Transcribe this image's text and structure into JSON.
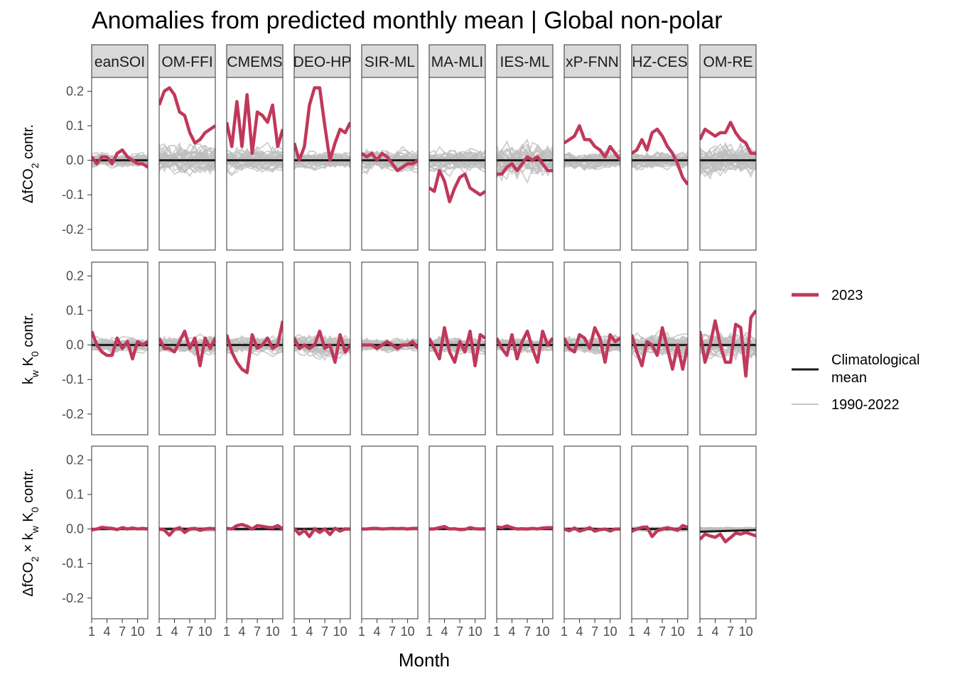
{
  "chart_data": {
    "type": "line",
    "title": "Anomalies from predicted monthly mean | Global non-polar",
    "xlabel": "Month",
    "x_ticks": [
      1,
      4,
      7,
      10
    ],
    "x_tick_labels": [
      "1",
      "4",
      "7",
      "10"
    ],
    "ylim": [
      -0.26,
      0.24
    ],
    "y_ticks": [
      -0.2,
      -0.1,
      0.0,
      0.1,
      0.2
    ],
    "y_tick_labels": [
      "-0.2",
      "-0.1",
      "0.0",
      "0.1",
      "0.2"
    ],
    "panels": [
      "eanSOI",
      "OM-FFI",
      "CMEMS",
      "DEO-HP",
      "SIR-ML",
      "MA-MLI",
      "IES-ML",
      "xP-FNN",
      "HZ-CES",
      "OM-RE"
    ],
    "rows": [
      {
        "ylabel": "ΔfCO2 contr.",
        "ylabel_parts": [
          [
            "Δ",
            ""
          ],
          [
            "fCO",
            ""
          ],
          [
            "2",
            "sub"
          ],
          [
            " contr.",
            ""
          ]
        ]
      },
      {
        "ylabel": "kw K0 contr.",
        "ylabel_parts": [
          [
            "k",
            ""
          ],
          [
            "w",
            "sub"
          ],
          [
            " K",
            ""
          ],
          [
            "0",
            "sub"
          ],
          [
            " contr.",
            ""
          ]
        ]
      },
      {
        "ylabel": "ΔfCO2 × kw K0 contr.",
        "ylabel_parts": [
          [
            "Δ",
            ""
          ],
          [
            "fCO",
            ""
          ],
          [
            "2",
            "sub"
          ],
          [
            " × k",
            ""
          ],
          [
            "w",
            "sub"
          ],
          [
            " K",
            ""
          ],
          [
            "0",
            "sub"
          ],
          [
            " contr.",
            ""
          ]
        ]
      }
    ],
    "legend": {
      "position": "right",
      "items": [
        {
          "label": "2023",
          "color": "#c0385a",
          "kind": "thick"
        },
        {
          "label": "Climatological mean",
          "label_lines": [
            "Climatological",
            "mean"
          ],
          "color": "#1a1a1a",
          "kind": "medium"
        },
        {
          "label": "1990-2022",
          "color": "#c8c8c8",
          "kind": "thin"
        }
      ]
    },
    "history_years": "1990-2022",
    "history_spread": [
      [
        0.03,
        0.07,
        0.06,
        0.04,
        0.05,
        0.05,
        0.08,
        0.04,
        0.04,
        0.07
      ],
      [
        0.03,
        0.04,
        0.04,
        0.05,
        0.03,
        0.04,
        0.03,
        0.04,
        0.05,
        0.06
      ],
      [
        0.005,
        0.008,
        0.007,
        0.008,
        0.004,
        0.005,
        0.004,
        0.006,
        0.01,
        0.008
      ]
    ],
    "climatological_mean": [
      [
        [
          1,
          0
        ],
        [
          12,
          0
        ]
      ],
      [
        [
          1,
          0
        ],
        [
          12,
          0
        ]
      ],
      [
        [
          1,
          0
        ],
        [
          12,
          0
        ]
      ],
      [
        [
          1,
          0
        ],
        [
          12,
          0
        ]
      ],
      [
        [
          1,
          0
        ],
        [
          12,
          0
        ]
      ],
      [
        [
          1,
          0
        ],
        [
          12,
          0
        ]
      ],
      [
        [
          1,
          0
        ],
        [
          12,
          0
        ]
      ],
      [
        [
          1,
          0
        ],
        [
          12,
          0
        ]
      ],
      [
        [
          1,
          0
        ],
        [
          12,
          0
        ]
      ],
      [
        [
          1,
          0
        ],
        [
          12,
          0
        ]
      ],
      [
        [
          1,
          0
        ],
        [
          12,
          0
        ]
      ],
      [
        [
          1,
          0
        ],
        [
          12,
          0
        ]
      ],
      [
        [
          1,
          0
        ],
        [
          12,
          0
        ]
      ],
      [
        [
          1,
          0
        ],
        [
          12,
          0
        ]
      ],
      [
        [
          1,
          0
        ],
        [
          12,
          0
        ]
      ],
      [
        [
          1,
          0
        ],
        [
          12,
          0
        ]
      ],
      [
        [
          1,
          0
        ],
        [
          12,
          0
        ]
      ],
      [
        [
          1,
          0
        ],
        [
          12,
          0
        ]
      ],
      [
        [
          1,
          0
        ],
        [
          12,
          0
        ]
      ],
      [
        [
          1,
          0
        ],
        [
          12,
          0
        ]
      ],
      [
        [
          1,
          0
        ],
        [
          12,
          0
        ]
      ],
      [
        [
          1,
          0
        ],
        [
          12,
          0
        ]
      ],
      [
        [
          1,
          0
        ],
        [
          12,
          0
        ]
      ],
      [
        [
          1,
          0
        ],
        [
          12,
          0
        ]
      ],
      [
        [
          1,
          0
        ],
        [
          12,
          0
        ]
      ],
      [
        [
          1,
          0
        ],
        [
          12,
          0
        ]
      ],
      [
        [
          1,
          0
        ],
        [
          12,
          0
        ]
      ],
      [
        [
          1,
          0
        ],
        [
          12,
          0
        ]
      ],
      [
        [
          1,
          0
        ],
        [
          12,
          0
        ]
      ],
      [
        [
          1,
          -0.008
        ],
        [
          12,
          -0.003
        ]
      ]
    ],
    "series_2023": [
      [
        [
          0.01,
          -0.01,
          0.01,
          0.01,
          -0.01,
          0.02,
          0.03,
          0.01,
          0.0,
          -0.01,
          -0.01,
          -0.02
        ],
        [
          0.16,
          0.2,
          0.21,
          0.19,
          0.14,
          0.13,
          0.08,
          0.05,
          0.06,
          0.08,
          0.09,
          0.1
        ],
        [
          0.11,
          0.04,
          0.17,
          0.04,
          0.19,
          0.02,
          0.14,
          0.13,
          0.11,
          0.16,
          0.04,
          0.09
        ],
        [
          0.05,
          0.0,
          0.04,
          0.16,
          0.21,
          0.21,
          0.1,
          0.0,
          0.05,
          0.09,
          0.08,
          0.11
        ],
        [
          0.02,
          0.01,
          0.02,
          0.0,
          0.02,
          0.01,
          -0.01,
          -0.03,
          -0.02,
          -0.01,
          -0.01,
          0.0
        ],
        [
          -0.08,
          -0.09,
          -0.03,
          -0.06,
          -0.12,
          -0.08,
          -0.05,
          -0.04,
          -0.08,
          -0.09,
          -0.1,
          -0.09
        ],
        [
          -0.04,
          -0.04,
          -0.02,
          -0.01,
          -0.03,
          -0.01,
          0.01,
          0.0,
          0.01,
          -0.01,
          -0.03,
          -0.03
        ],
        [
          0.05,
          0.06,
          0.07,
          0.1,
          0.06,
          0.06,
          0.04,
          0.03,
          0.01,
          0.04,
          0.02,
          0.0
        ],
        [
          0.02,
          0.03,
          0.06,
          0.03,
          0.08,
          0.09,
          0.07,
          0.04,
          0.02,
          -0.01,
          -0.05,
          -0.07
        ],
        [
          0.06,
          0.09,
          0.08,
          0.07,
          0.08,
          0.08,
          0.11,
          0.08,
          0.06,
          0.05,
          0.02,
          0.02
        ]
      ],
      [
        [
          0.04,
          0.0,
          -0.02,
          -0.03,
          -0.03,
          0.02,
          -0.01,
          0.01,
          -0.04,
          0.01,
          0.0,
          0.01
        ],
        [
          0.02,
          -0.01,
          -0.01,
          -0.02,
          0.01,
          0.04,
          -0.01,
          0.02,
          -0.06,
          0.02,
          -0.01,
          0.02
        ],
        [
          0.03,
          -0.02,
          -0.05,
          -0.07,
          -0.08,
          0.03,
          -0.01,
          0.0,
          0.02,
          -0.01,
          0.0,
          0.07
        ],
        [
          0.02,
          -0.01,
          0.0,
          -0.01,
          0.0,
          0.04,
          -0.01,
          0.0,
          -0.05,
          0.03,
          -0.02,
          0.0
        ],
        [
          0.0,
          0.0,
          0.0,
          -0.01,
          0.0,
          0.01,
          0.0,
          -0.01,
          0.0,
          0.0,
          0.01,
          -0.01
        ],
        [
          0.02,
          -0.01,
          -0.04,
          0.05,
          -0.02,
          -0.05,
          0.01,
          -0.02,
          0.04,
          -0.06,
          0.03,
          0.02
        ],
        [
          0.02,
          -0.01,
          -0.03,
          0.03,
          -0.04,
          0.01,
          0.04,
          -0.01,
          -0.05,
          0.04,
          0.0,
          0.02
        ],
        [
          0.02,
          -0.01,
          -0.02,
          0.03,
          0.02,
          -0.01,
          0.05,
          0.02,
          -0.05,
          0.03,
          0.01,
          0.02
        ],
        [
          0.03,
          -0.02,
          -0.06,
          0.01,
          0.0,
          -0.03,
          0.05,
          -0.01,
          -0.07,
          0.0,
          -0.07,
          0.0
        ],
        [
          0.04,
          -0.05,
          0.0,
          0.07,
          0.0,
          -0.05,
          -0.05,
          0.06,
          0.05,
          -0.09,
          0.08,
          0.1
        ]
      ],
      [
        [
          -0.003,
          0.0,
          0.005,
          0.003,
          0.002,
          -0.002,
          0.004,
          0.0,
          0.003,
          0.0,
          0.002,
          0.0
        ],
        [
          0.0,
          -0.003,
          -0.018,
          -0.001,
          0.004,
          -0.01,
          0.0,
          0.002,
          -0.004,
          0.0,
          0.002,
          0.0
        ],
        [
          0.002,
          0.0,
          0.01,
          0.013,
          0.008,
          0.0,
          0.01,
          0.008,
          0.005,
          0.004,
          0.01,
          0.0
        ],
        [
          0.002,
          -0.015,
          -0.004,
          -0.022,
          0.0,
          -0.01,
          0.0,
          -0.016,
          0.002,
          -0.006,
          0.0,
          0.0
        ],
        [
          0.0,
          0.0,
          0.002,
          0.002,
          0.0,
          0.001,
          0.002,
          0.001,
          0.002,
          0.0,
          0.002,
          0.002
        ],
        [
          0.0,
          0.0,
          0.004,
          0.007,
          0.0,
          0.001,
          -0.002,
          -0.001,
          0.004,
          0.001,
          0.0,
          0.001
        ],
        [
          0.006,
          0.004,
          0.009,
          0.004,
          0.0,
          0.001,
          0.0,
          0.002,
          0.0,
          0.003,
          0.004,
          0.004
        ],
        [
          0.0,
          -0.005,
          0.003,
          -0.006,
          -0.002,
          0.004,
          -0.006,
          -0.002,
          0.0,
          -0.006,
          0.0,
          0.0
        ],
        [
          -0.007,
          0.0,
          0.005,
          0.006,
          -0.022,
          -0.005,
          0.0,
          0.004,
          0.0,
          -0.004,
          0.01,
          0.005
        ],
        [
          -0.03,
          -0.015,
          -0.02,
          -0.024,
          -0.015,
          -0.037,
          -0.025,
          -0.012,
          -0.015,
          -0.01,
          -0.015,
          -0.02
        ]
      ]
    ]
  }
}
